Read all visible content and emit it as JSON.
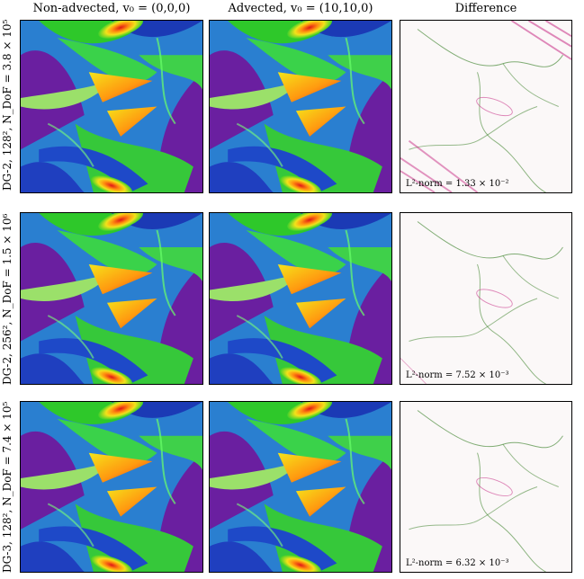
{
  "columns": [
    "Non-advected, v₀ = (0,0,0)",
    "Advected, v₀ = (10,10,0)",
    "Difference"
  ],
  "rows": [
    {
      "label": "DG-2, 128², N_DoF = 3.8 × 10⁵",
      "norm": "L²-norm = 1.33 × 10⁻²"
    },
    {
      "label": "DG-2, 256², N_DoF = 1.5 × 10⁶",
      "norm": "L²-norm = 7.52 × 10⁻³"
    },
    {
      "label": "DG-3, 128², N_DoF = 7.4 × 10⁵",
      "norm": "L²-norm = 6.32 × 10⁻³"
    }
  ],
  "colors": {
    "background_blue": "#2a7fd0",
    "violet": "#6a1fa0",
    "green": "#2ec82a",
    "yellow": "#f2e21a",
    "red": "#e01616",
    "diff_pink": "#c2187a",
    "diff_green": "#2f7a1c"
  }
}
